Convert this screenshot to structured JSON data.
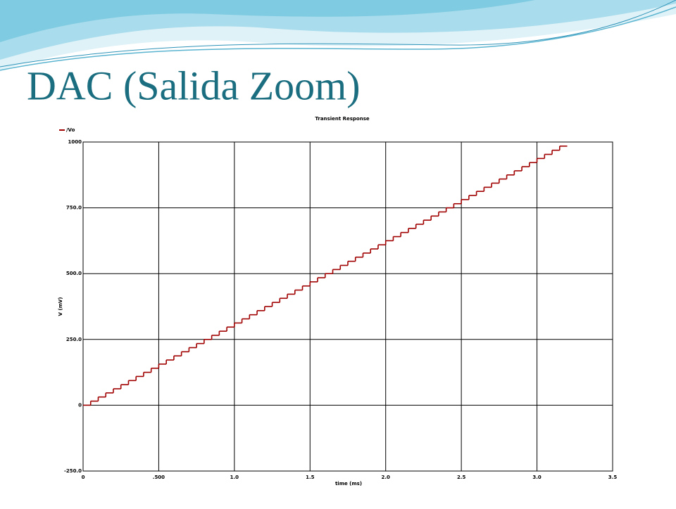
{
  "slide_title": "DAC (Salida Zoom)",
  "chart_data": {
    "type": "line",
    "title": "Transient Response",
    "xlabel": "time (ms)",
    "ylabel": "V (mV)",
    "drawstyle": "steps-post",
    "grid": true,
    "legend": "upper left",
    "x": [
      0,
      0.05,
      0.1,
      0.15,
      0.2,
      0.25,
      0.3,
      0.35,
      0.4,
      0.45,
      0.5,
      0.55,
      0.6,
      0.65,
      0.7,
      0.75,
      0.8,
      0.85,
      0.9,
      0.95,
      1,
      1.05,
      1.1,
      1.15,
      1.2,
      1.25,
      1.3,
      1.35,
      1.4,
      1.45,
      1.5,
      1.55,
      1.6,
      1.65,
      1.7,
      1.75,
      1.8,
      1.85,
      1.9,
      1.95,
      2,
      2.05,
      2.1,
      2.15,
      2.2,
      2.25,
      2.3,
      2.35,
      2.4,
      2.45,
      2.5,
      2.55,
      2.6,
      2.65,
      2.7,
      2.75,
      2.8,
      2.85,
      2.9,
      2.95,
      3,
      3.05,
      3.1,
      3.15,
      3.2
    ],
    "series": [
      {
        "name": "/Vo",
        "color": "#a00000",
        "values": [
          0,
          15.6,
          31.3,
          46.9,
          62.5,
          78.1,
          93.8,
          109.4,
          125,
          140.6,
          156.3,
          171.9,
          187.5,
          203.1,
          218.8,
          234.4,
          250,
          265.6,
          281.3,
          296.9,
          312.5,
          328.1,
          343.8,
          359.4,
          375,
          390.6,
          406.3,
          421.9,
          437.5,
          453.1,
          468.8,
          484.4,
          500,
          515.6,
          531.3,
          546.9,
          562.5,
          578.1,
          593.8,
          609.4,
          625,
          640.6,
          656.3,
          671.9,
          687.5,
          703.1,
          718.8,
          734.4,
          750,
          765.6,
          781.3,
          796.9,
          812.5,
          828.1,
          843.8,
          859.4,
          875,
          890.6,
          906.3,
          921.9,
          937.5,
          953.1,
          968.8,
          984.4,
          984.4
        ]
      }
    ],
    "xlim": [
      0,
      3.5
    ],
    "xticks": [
      0,
      {
        "value": 0.5,
        "label": ".500"
      },
      {
        "value": 1,
        "label": "1.0"
      },
      {
        "value": 1.5,
        "label": "1.5"
      },
      {
        "value": 2,
        "label": "2.0"
      },
      {
        "value": 2.5,
        "label": "2.5"
      },
      {
        "value": 3,
        "label": "3.0"
      },
      {
        "value": 3.5,
        "label": "3.5"
      }
    ],
    "ylim": [
      -250,
      1000
    ],
    "yticks": [
      {
        "value": -250,
        "label": "-250.0"
      },
      0,
      {
        "value": 250,
        "label": "250.0"
      },
      {
        "value": 500,
        "label": "500.0"
      },
      {
        "value": 750,
        "label": "750.0"
      },
      1000
    ]
  }
}
